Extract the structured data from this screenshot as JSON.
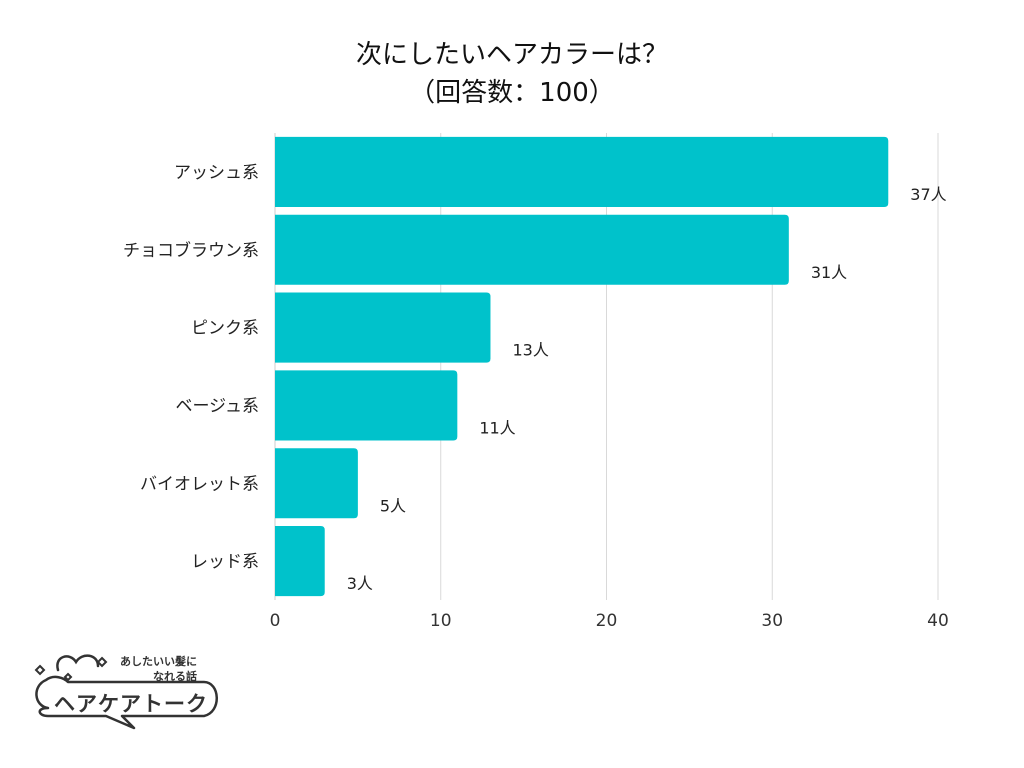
{
  "chart_data": {
    "type": "bar",
    "orientation": "horizontal",
    "title": "次にしたいヘアカラーは？",
    "subtitle": "（回答数：100）",
    "categories": [
      "アッシュ系",
      "チョコブラウン系",
      "ピンク系",
      "ベージュ系",
      "バイオレット系",
      "レッド系"
    ],
    "values": [
      37,
      31,
      13,
      11,
      5,
      3
    ],
    "value_labels": [
      "37人",
      "31人",
      "13人",
      "11人",
      "5人",
      "3人"
    ],
    "xlim": [
      0,
      40
    ],
    "xticks": [
      "0",
      "10",
      "20",
      "30",
      "40"
    ],
    "grid": true,
    "bar_color": "#00C2CB"
  },
  "logo": {
    "tagline_line1": "あしたいい髪に",
    "tagline_line2": "なれる話",
    "name": "ヘアケアトーク"
  }
}
